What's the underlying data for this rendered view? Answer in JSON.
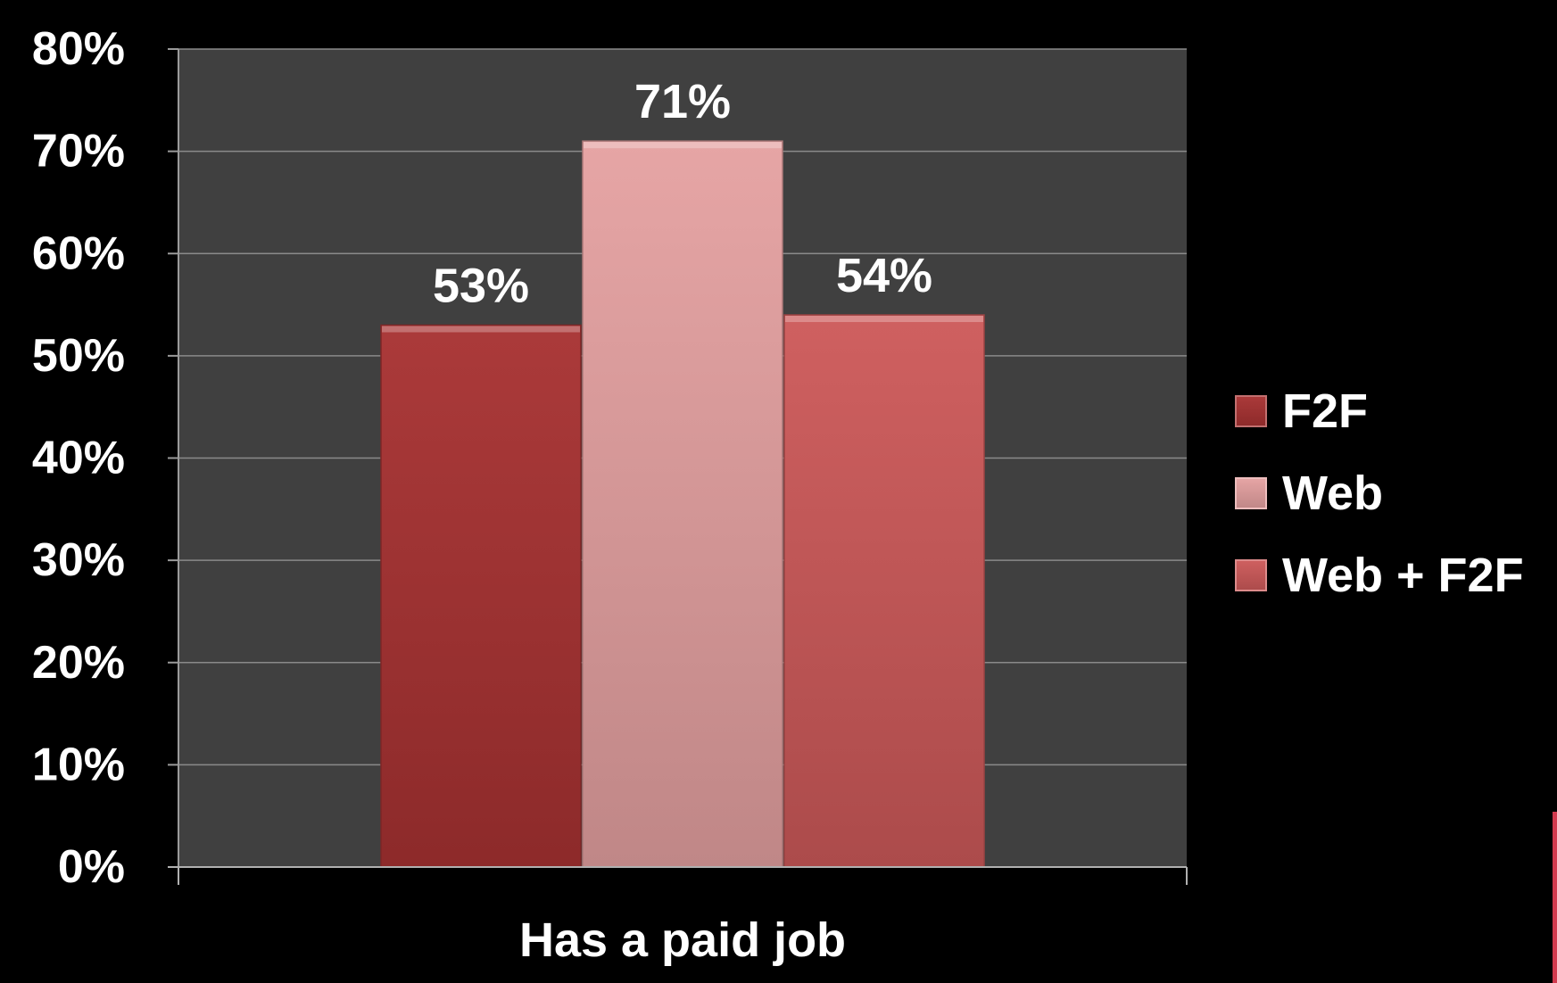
{
  "chart_data": {
    "type": "bar",
    "title": "",
    "xlabel": "",
    "ylabel": "",
    "categories": [
      "Has a paid job"
    ],
    "series": [
      {
        "name": "F2F",
        "values": [
          53
        ],
        "label": "53%",
        "color": "#a83232"
      },
      {
        "name": "Web",
        "values": [
          71
        ],
        "label": "71%",
        "color": "#e5a1a1"
      },
      {
        "name": "Web + F2F",
        "values": [
          54
        ],
        "label": "54%",
        "color": "#cd5959"
      }
    ],
    "ylim": [
      0,
      80
    ],
    "yticks": [
      0,
      10,
      20,
      30,
      40,
      50,
      60,
      70,
      80
    ],
    "ytick_labels": [
      "0%",
      "10%",
      "20%",
      "30%",
      "40%",
      "50%",
      "60%",
      "70%",
      "80%"
    ],
    "grid": true,
    "legend_position": "right",
    "plot_background": "#404040",
    "page_background": "#000000"
  }
}
